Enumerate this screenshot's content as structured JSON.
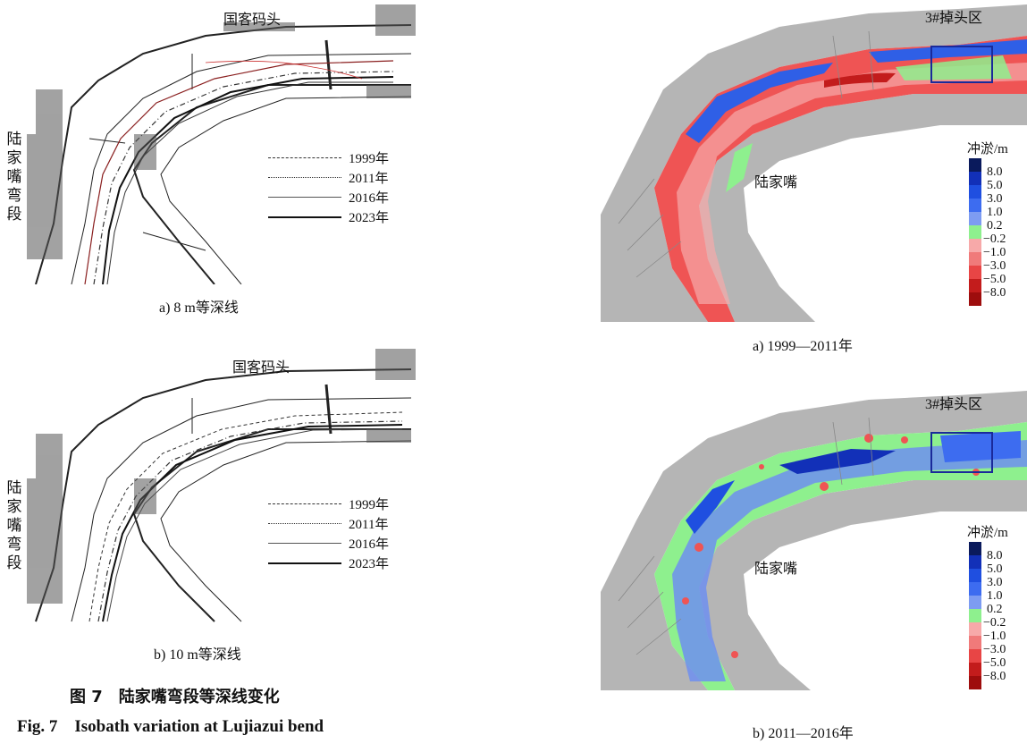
{
  "figure": {
    "title_cn": "图 7　陆家嘴弯段等深线变化",
    "title_en": "Fig. 7　Isobath variation at Lujiazui bend"
  },
  "left_panels": [
    {
      "place_top": "国客码头",
      "place_side": [
        "陆",
        "家",
        "嘴",
        "弯",
        "段"
      ],
      "legend": [
        "1999年",
        "2011年",
        "2016年",
        "2023年"
      ],
      "caption": "a) 8 m等深线"
    },
    {
      "place_top": "国客码头",
      "place_side": [
        "陆",
        "家",
        "嘴",
        "弯",
        "段"
      ],
      "legend": [
        "1999年",
        "2011年",
        "2016年",
        "2023年"
      ],
      "caption": "b) 10 m等深线"
    }
  ],
  "right_panels": [
    {
      "place_top": "3#掉头区",
      "place_mid": "陆家嘴",
      "colorbar_title": "冲淤/m",
      "ticks": [
        "8.0",
        "5.0",
        "3.0",
        "1.0",
        "0.2",
        "−0.2",
        "−1.0",
        "−3.0",
        "−5.0",
        "−8.0"
      ],
      "caption": "a) 1999—2011年"
    },
    {
      "place_top": "3#掉头区",
      "place_mid": "陆家嘴",
      "colorbar_title": "冲淤/m",
      "ticks": [
        "8.0",
        "5.0",
        "3.0",
        "1.0",
        "0.2",
        "−0.2",
        "−1.0",
        "−3.0",
        "−5.0",
        "−8.0"
      ],
      "caption": "b) 2011—2016年"
    }
  ],
  "colors": {
    "colorbar": [
      "#0a1a5c",
      "#1230b8",
      "#1f4fe0",
      "#3d6cf0",
      "#7d9cf2",
      "#8ef08e",
      "#f7a9a9",
      "#f07a7a",
      "#e84545",
      "#c31c1c",
      "#9e0d0d"
    ],
    "erosion_red": "#ef5454",
    "deposition_blue": "#2f5fe6",
    "stable_green": "#8ef08e",
    "city_gray": "#9a9a9a"
  }
}
